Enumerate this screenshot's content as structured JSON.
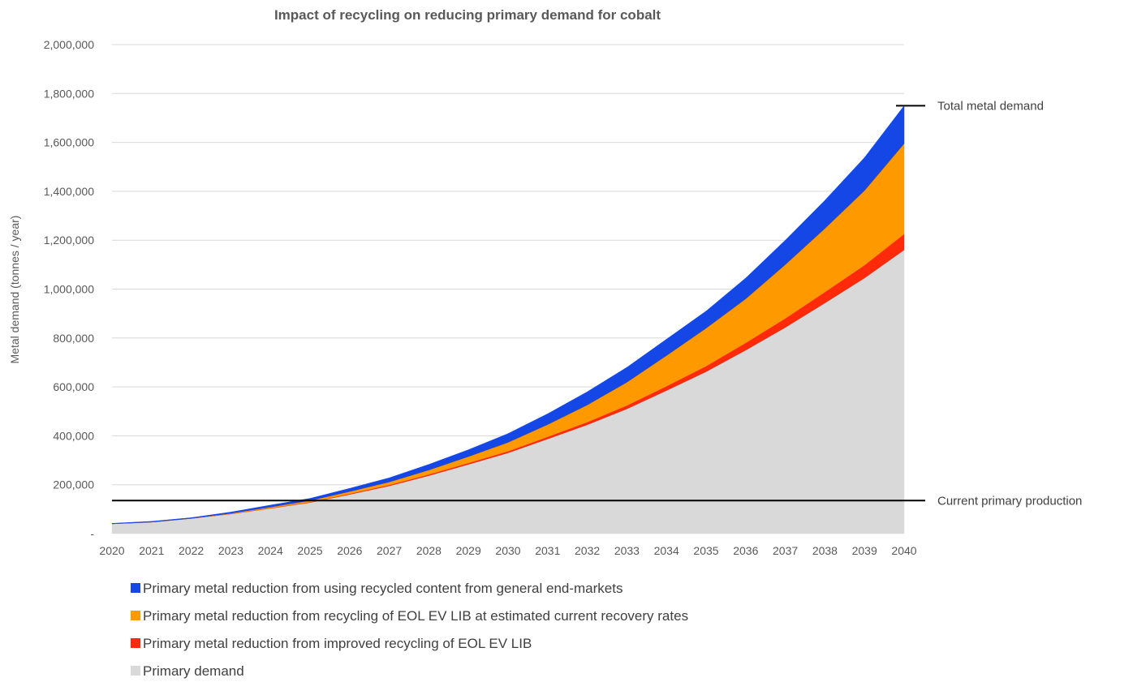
{
  "chart_data": {
    "type": "area",
    "stacked": true,
    "title": "Impact of recycling on reducing primary demand for cobalt",
    "xlabel": "",
    "ylabel": "Metal demand (tonnes / year)",
    "ylim": [
      0,
      2000000
    ],
    "yticks": [
      0,
      200000,
      400000,
      600000,
      800000,
      1000000,
      1200000,
      1400000,
      1600000,
      1800000,
      2000000
    ],
    "ytick_labels": [
      "-",
      "200,000",
      "400,000",
      "600,000",
      "800,000",
      "1,000,000",
      "1,200,000",
      "1,400,000",
      "1,600,000",
      "1,800,000",
      "2,000,000"
    ],
    "x": [
      "2020",
      "2021",
      "2022",
      "2023",
      "2024",
      "2025",
      "2026",
      "2027",
      "2028",
      "2029",
      "2030",
      "2031",
      "2032",
      "2033",
      "2034",
      "2035",
      "2036",
      "2037",
      "2038",
      "2039",
      "2040"
    ],
    "grid": true,
    "legend_position": "bottom",
    "series": [
      {
        "name": "Primary demand",
        "color": "#d9d9d9",
        "values": [
          40000,
          47000,
          62000,
          80000,
          103000,
          127000,
          160000,
          195000,
          237000,
          283000,
          330000,
          387000,
          445000,
          510000,
          585000,
          662000,
          750000,
          843000,
          943000,
          1045000,
          1160000
        ]
      },
      {
        "name": "Primary metal reduction from improved recycling of EOL EV LIB",
        "color": "#ff2a0a",
        "values": [
          0,
          0,
          0,
          1000,
          1500,
          2000,
          3000,
          4000,
          5000,
          6000,
          7000,
          9000,
          11000,
          14000,
          18000,
          23000,
          30000,
          37000,
          45000,
          53000,
          65000
        ]
      },
      {
        "name": "Primary metal reduction from recycling of EOL EV LIB at estimated current recovery rates",
        "color": "#ff9900",
        "values": [
          0,
          0,
          0,
          2000,
          4000,
          6000,
          9000,
          12000,
          18000,
          26000,
          36000,
          50000,
          70000,
          95000,
          125000,
          155000,
          180000,
          220000,
          260000,
          305000,
          370000
        ]
      },
      {
        "name": "Primary metal reduction from using recycled content from general end-markets",
        "color": "#1447e6",
        "values": [
          2000,
          3000,
          3000,
          5000,
          8000,
          9000,
          13000,
          17000,
          23000,
          28000,
          36000,
          44000,
          54000,
          61000,
          67000,
          70000,
          85000,
          100000,
          115000,
          135000,
          155000
        ]
      }
    ],
    "legend_order": [
      3,
      2,
      1,
      0
    ],
    "annotations": [
      {
        "label": "Total metal demand",
        "value": 1750000
      },
      {
        "label": "Current primary production",
        "value": 135000
      }
    ]
  }
}
